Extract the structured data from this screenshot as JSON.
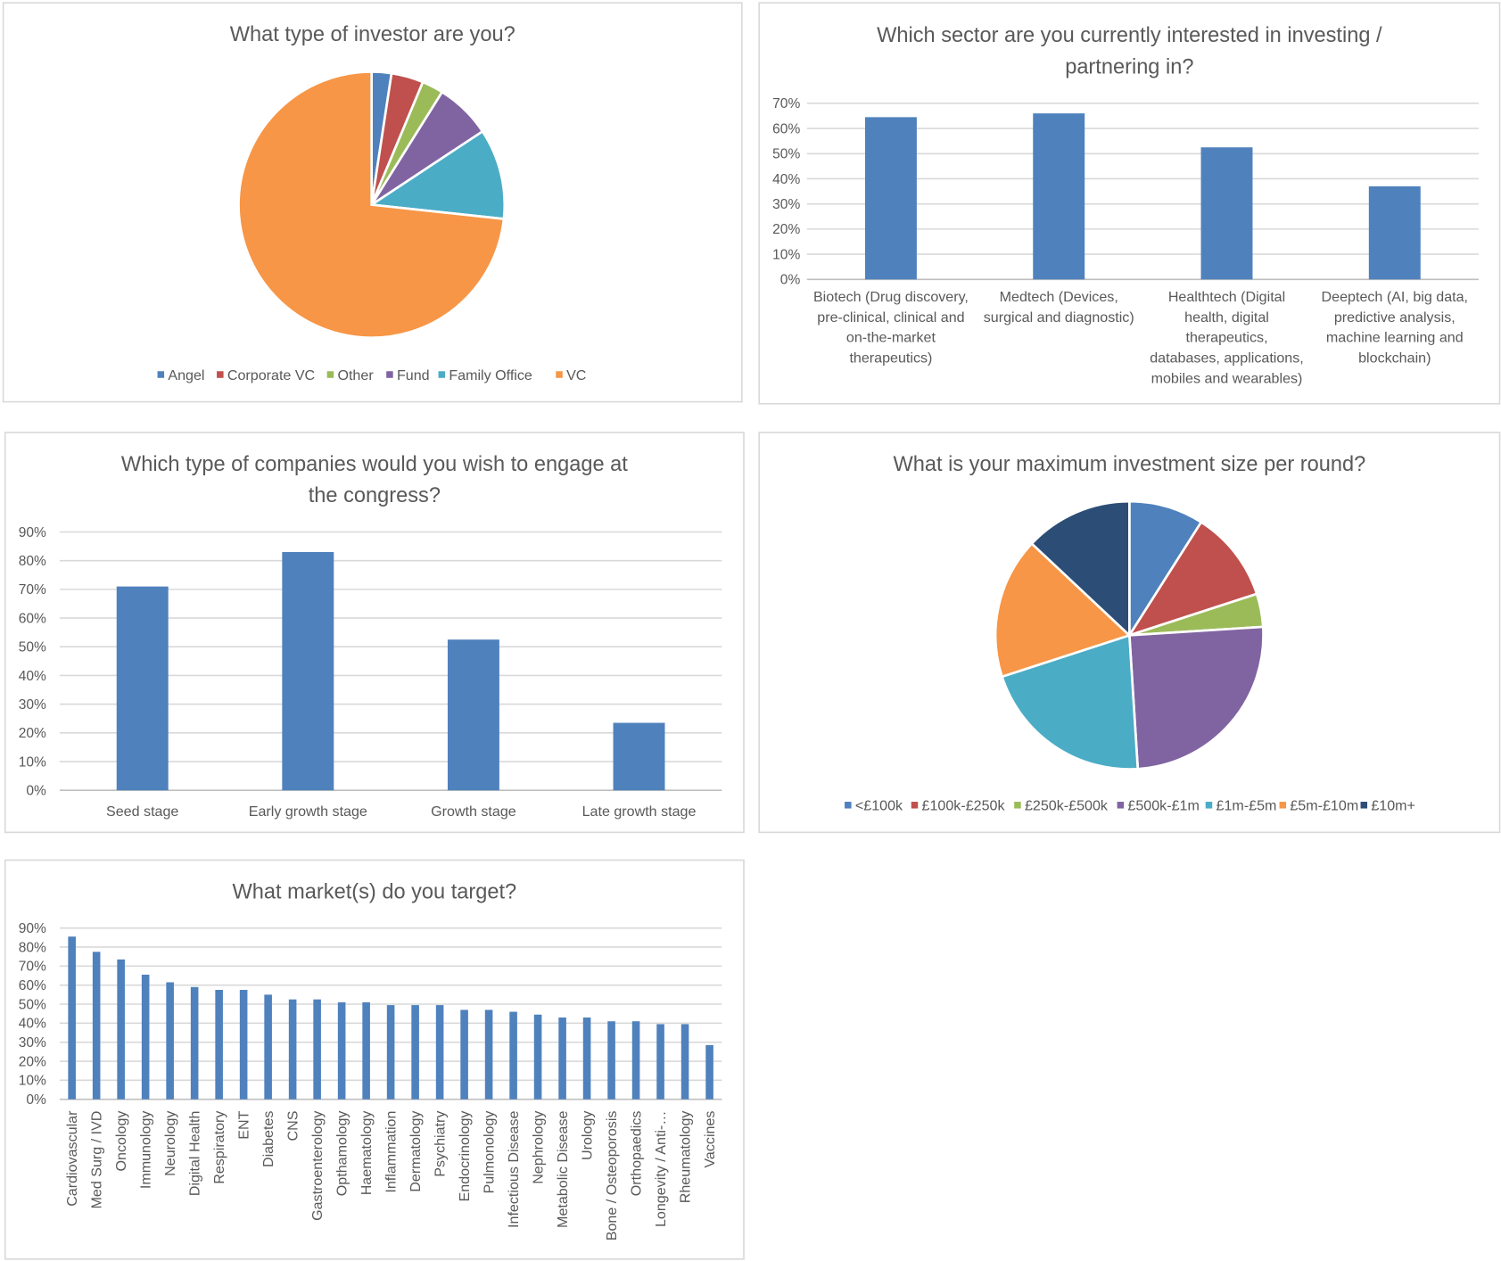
{
  "chart_data": [
    {
      "id": "investor-type",
      "type": "pie",
      "title_lines": [
        "What type of investor are you?"
      ],
      "categories": [
        "Angel",
        "Corporate VC",
        "Other",
        "Fund",
        "Family Office",
        "VC"
      ],
      "values": [
        2.4,
        3.9,
        2.6,
        6.8,
        11.0,
        73.3
      ],
      "colors": [
        "#4f81bd",
        "#c0504d",
        "#9bbb59",
        "#8064a2",
        "#4bacc6",
        "#f79646"
      ],
      "legend": "bottom"
    },
    {
      "id": "sector-interest",
      "type": "bar",
      "title_lines": [
        "Which sector are you currently interested in investing /",
        "partnering in?"
      ],
      "categories": [
        [
          "Biotech (Drug discovery,",
          "pre-clinical, clinical and",
          "on-the-market",
          "therapeutics)"
        ],
        [
          "Medtech (Devices,",
          "surgical and diagnostic)"
        ],
        [
          "Healthtech (Digital",
          "health, digital",
          "therapeutics,",
          "databases, applications,",
          "mobiles and wearables)"
        ],
        [
          "Deeptech (AI, big data,",
          "predictive analysis,",
          "machine learning and",
          "blockchain)"
        ]
      ],
      "values": [
        64.5,
        66,
        52.5,
        37
      ],
      "ylim": [
        0,
        70
      ],
      "yticks": [
        "0%",
        "10%",
        "20%",
        "30%",
        "40%",
        "50%",
        "60%",
        "70%"
      ],
      "color": "#4f81bd",
      "grid": true
    },
    {
      "id": "company-type",
      "type": "bar",
      "title_lines": [
        "Which type of companies would you wish to engage at",
        "the congress?"
      ],
      "categories": [
        [
          "Seed stage"
        ],
        [
          "Early growth stage"
        ],
        [
          "Growth stage"
        ],
        [
          "Late growth stage"
        ]
      ],
      "values": [
        71,
        83,
        52.5,
        23.5
      ],
      "ylim": [
        0,
        90
      ],
      "yticks": [
        "0%",
        "10%",
        "20%",
        "30%",
        "40%",
        "50%",
        "60%",
        "70%",
        "80%",
        "90%"
      ],
      "color": "#4f81bd",
      "grid": true
    },
    {
      "id": "max-investment",
      "type": "pie",
      "title_lines": [
        "What is your maximum investment size per round?"
      ],
      "categories": [
        "<£100k",
        "£100k-£250k",
        "£250k-£500k",
        "£500k-£1m",
        "£1m-£5m",
        "£5m-£10m",
        "£10m+"
      ],
      "values": [
        9,
        11,
        4,
        25,
        21,
        17,
        13
      ],
      "colors": [
        "#4f81bd",
        "#c0504d",
        "#9bbb59",
        "#8064a2",
        "#4bacc6",
        "#f79646",
        "#2c4d75"
      ],
      "legend": "bottom"
    },
    {
      "id": "target-markets",
      "type": "bar",
      "title_lines": [
        "What market(s) do you target?"
      ],
      "categories": [
        "Cardiovascular",
        "Med Surg / IVD",
        "Oncology",
        "Immunology",
        "Neurology",
        "Digital Health",
        "Respiratory",
        "ENT",
        "Diabetes",
        "CNS",
        "Gastroenterology",
        "Opthamology",
        "Haematology",
        "Inflammation",
        "Dermatology",
        "Psychiatry",
        "Endocrinology",
        "Pulmonology",
        "Infectious Disease",
        "Nephrology",
        "Metabolic Disease",
        "Urology",
        "Bone / Osteoporosis",
        "Orthopaedics",
        "Longevity / Anti-…",
        "Rheumatology",
        "Vaccines"
      ],
      "values": [
        85.5,
        77.5,
        73.5,
        65.5,
        61.5,
        59,
        57.5,
        57.5,
        55,
        52.5,
        52.5,
        51,
        51,
        49.5,
        49.5,
        49.5,
        47,
        47,
        46,
        44.5,
        43,
        43,
        41,
        41,
        39.5,
        39.5,
        28.5
      ],
      "ylim": [
        0,
        90
      ],
      "yticks": [
        "0%",
        "10%",
        "20%",
        "30%",
        "40%",
        "50%",
        "60%",
        "70%",
        "80%",
        "90%"
      ],
      "color": "#4f81bd",
      "grid": true
    }
  ]
}
